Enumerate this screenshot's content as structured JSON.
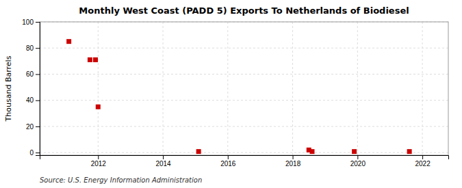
{
  "chart_data": {
    "type": "scatter",
    "title": "Monthly West Coast (PADD 5) Exports To Netherlands of Biodiesel",
    "y_label": "Thousand Barrels",
    "annotations": [
      "Source: U.S. Energy Information Administration"
    ],
    "x": [
      2011.1,
      2011.75,
      2011.92,
      2012.0,
      2015.1,
      2018.5,
      2018.6,
      2019.9,
      2021.6
    ],
    "values": [
      85,
      71,
      71,
      35,
      0.8,
      2,
      0.8,
      0.8,
      0.8
    ],
    "color": "#cc0000",
    "marker": "square",
    "xlim": [
      2010.2,
      2022.8
    ],
    "ylim": [
      -2,
      100
    ],
    "xticks": [
      2012,
      2014,
      2016,
      2018,
      2020,
      2022
    ],
    "yticks": [
      0,
      20,
      40,
      60,
      80,
      100
    ],
    "grid": true
  }
}
